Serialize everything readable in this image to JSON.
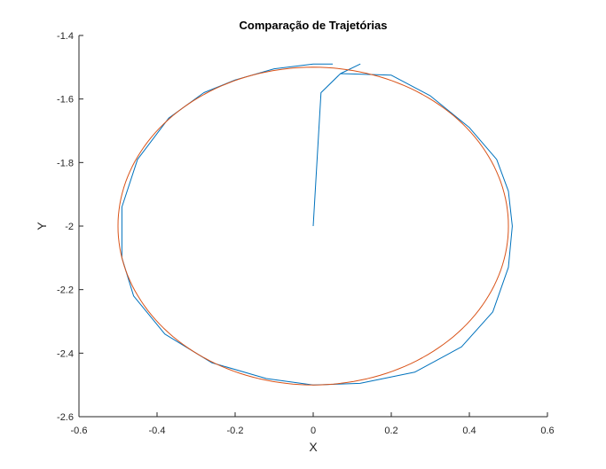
{
  "chart_data": {
    "type": "line",
    "title": "Comparação de Trajetórias",
    "xlabel": "X",
    "ylabel": "Y",
    "xlim": [
      -0.6,
      0.6
    ],
    "ylim": [
      -2.6,
      -1.4
    ],
    "xticks": [
      -0.6,
      -0.4,
      -0.2,
      0,
      0.2,
      0.4,
      0.6
    ],
    "yticks": [
      -2.6,
      -2.4,
      -2.2,
      -2,
      -1.8,
      -1.6,
      -1.4
    ],
    "xtick_labels": [
      "-0.6",
      "-0.4",
      "-0.2",
      "0",
      "0.2",
      "0.4",
      "0.6"
    ],
    "ytick_labels": [
      "-2.6",
      "-2.4",
      "-2.2",
      "-2",
      "-1.8",
      "-1.6",
      "-1.4"
    ],
    "grid": false,
    "series": [
      {
        "color": "#0072BD",
        "x": [
          0,
          0.02,
          0.07,
          0.12,
          0.07,
          0.2,
          0.3,
          0.4,
          0.47,
          0.5,
          0.51,
          0.5,
          0.46,
          0.38,
          0.26,
          0.12,
          0,
          -0.12,
          -0.26,
          -0.38,
          -0.46,
          -0.49,
          -0.49,
          -0.45,
          -0.37,
          -0.28,
          -0.2,
          -0.1,
          0,
          0.05
        ],
        "y": [
          -2.0,
          -1.58,
          -1.52,
          -1.49,
          -1.52,
          -1.525,
          -1.59,
          -1.69,
          -1.79,
          -1.89,
          -2.0,
          -2.13,
          -2.27,
          -2.38,
          -2.46,
          -2.495,
          -2.5,
          -2.48,
          -2.43,
          -2.34,
          -2.22,
          -2.1,
          -1.94,
          -1.79,
          -1.66,
          -1.58,
          -1.54,
          -1.505,
          -1.49,
          -1.49
        ]
      },
      {
        "color": "#D95319",
        "shape": "circle",
        "center": [
          0,
          -2
        ],
        "radius": 0.5
      }
    ]
  }
}
